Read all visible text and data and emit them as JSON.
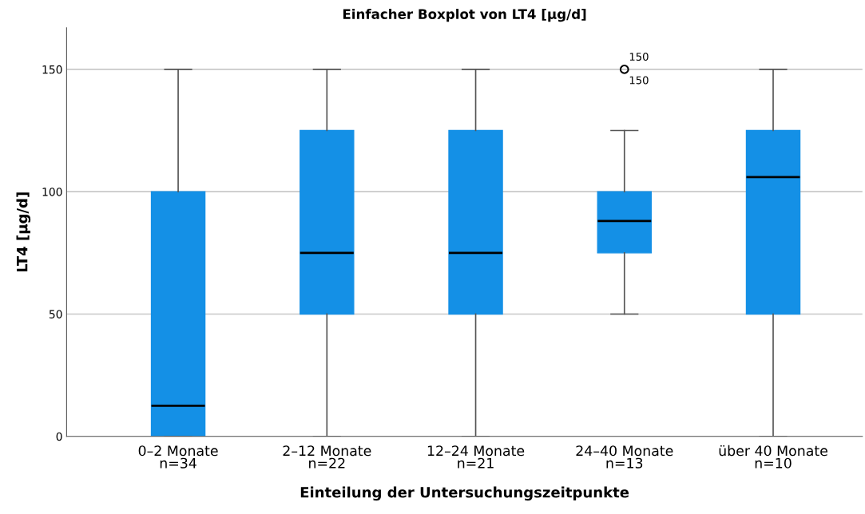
{
  "chart_data": {
    "type": "box",
    "title": "Einfacher Boxplot von LT4 [µg/d]",
    "xlabel": "Einteilung der Untersuchungszeitpunkte",
    "ylabel": "LT4 [µg/d]",
    "categories": [
      "0–2 Monate\nn=34",
      "2–12 Monate\nn=22",
      "12–24 Monate\nn=21",
      "24–40 Monate\nn=13",
      "über 40 Monate\nn=10"
    ],
    "color": "#1490e6",
    "boxes": [
      {
        "low": 0,
        "q1": 0,
        "median": 12.5,
        "q3": 100,
        "high": 150
      },
      {
        "low": 0,
        "q1": 50,
        "median": 75,
        "q3": 125,
        "high": 150
      },
      {
        "low": 0,
        "q1": 50,
        "median": 75,
        "q3": 125,
        "high": 150
      },
      {
        "low": 50,
        "q1": 75,
        "median": 88,
        "q3": 100,
        "high": 125,
        "outliers": [
          150
        ]
      },
      {
        "low": 0,
        "q1": 50,
        "median": 106,
        "q3": 125,
        "high": 150
      }
    ],
    "annotations": [
      "150",
      "150"
    ],
    "ylim": [
      0,
      167
    ],
    "yticks": [
      0,
      50,
      100,
      150
    ],
    "grid": "y"
  }
}
